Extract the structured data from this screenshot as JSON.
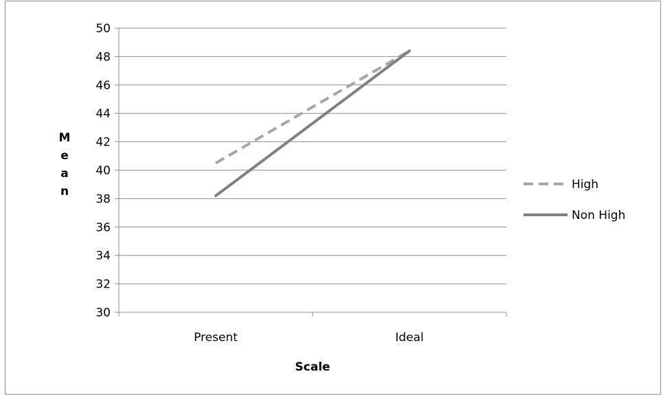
{
  "chart_data": {
    "type": "line",
    "title": "",
    "xlabel": "Scale",
    "ylabel": "Mean",
    "categories": [
      "Present",
      "Ideal"
    ],
    "ylim": [
      30,
      50
    ],
    "yticks": [
      30,
      32,
      34,
      36,
      38,
      40,
      42,
      44,
      46,
      48,
      50
    ],
    "grid": "horizontal",
    "legend_position": "right",
    "series": [
      {
        "name": "High",
        "values": [
          40.5,
          48.4
        ],
        "color": "#a6a6a6",
        "style": "dashed"
      },
      {
        "name": "Non High",
        "values": [
          38.2,
          48.4
        ],
        "color": "#808080",
        "style": "solid"
      }
    ]
  }
}
